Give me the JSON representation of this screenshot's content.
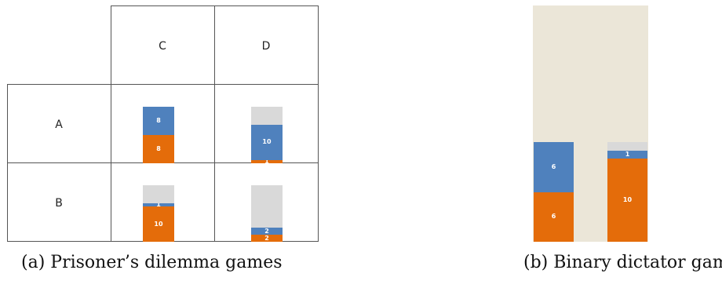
{
  "colors": {
    "orange": "#e46c0a",
    "blue": "#4f81bd",
    "gray": "#d9d9d9",
    "tan": "#ebe6d8"
  },
  "panel_a": {
    "col_headers": [
      "C",
      "D"
    ],
    "row_headers": [
      "A",
      "B"
    ],
    "cells": [
      {
        "row": "A",
        "col": "C",
        "orange": 8,
        "blue": 8,
        "gray": 0,
        "orange_label": "8",
        "blue_label": "8"
      },
      {
        "row": "A",
        "col": "D",
        "orange": 1,
        "blue": 10,
        "gray": 5,
        "orange_label": "1",
        "blue_label": "10"
      },
      {
        "row": "B",
        "col": "C",
        "orange": 10,
        "blue": 1,
        "gray": 5,
        "orange_label": "10",
        "blue_label": "1"
      },
      {
        "row": "B",
        "col": "D",
        "orange": 2,
        "blue": 2,
        "gray": 12,
        "orange_label": "2",
        "blue_label": "2"
      }
    ],
    "caption": "(a) Prisoner’s dilemma games"
  },
  "panel_b": {
    "bars": [
      {
        "orange": 6,
        "blue": 6,
        "gray": 0,
        "orange_label": "6",
        "blue_label": "6"
      },
      {
        "orange": 10,
        "blue": 1,
        "gray": 1,
        "orange_label": "10",
        "blue_label": "1"
      }
    ],
    "caption": "(b) Binary dictator games"
  }
}
